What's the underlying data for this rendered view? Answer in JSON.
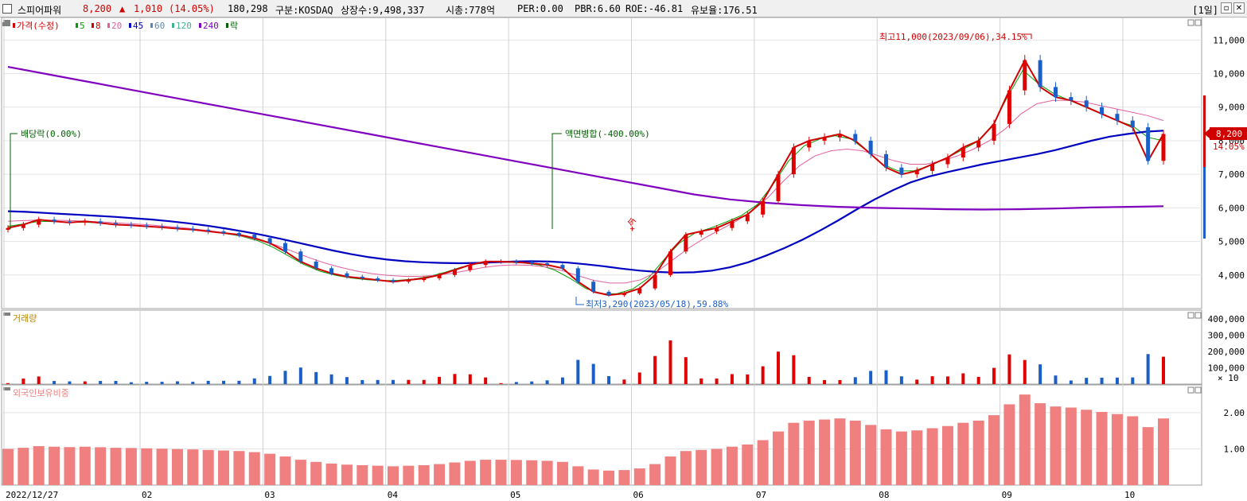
{
  "header": {
    "name": "스피어파워",
    "price": "8,200",
    "arrow": "▲",
    "change": "1,010",
    "change_pct": "(14.05%)",
    "volume": "180,298",
    "market": "구분:KOSDAQ",
    "shares": "상장수:9,498,337",
    "mcap": "시총:778억",
    "per": "PER:0.00",
    "pbr": "PBR:6.60",
    "roe": "ROE:-46.81",
    "float": "유보율:176.51",
    "period": "[1일]"
  },
  "legend": [
    {
      "text": "가격(수정)",
      "color": "#d00000"
    },
    {
      "text": "5",
      "color": "#00a000"
    },
    {
      "text": "8",
      "color": "#d00000"
    },
    {
      "text": "20",
      "color": "#e060a0"
    },
    {
      "text": "45",
      "color": "#0000c0"
    },
    {
      "text": "60",
      "color": "#5a8ab0"
    },
    {
      "text": "120",
      "color": "#40b090"
    },
    {
      "text": "240",
      "color": "#8000c0"
    },
    {
      "text": "락",
      "color": "#006000"
    }
  ],
  "annotations": {
    "high": "최고11,000(2023/09/06),34.15%",
    "low": "최저3,290(2023/05/18),59.88%",
    "dividend": "배당락(0.00%)",
    "split": "액면병합(-400.00%)",
    "unit_label": "+今",
    "last_price": "8,200",
    "last_pct": "14.05%"
  },
  "volume_panel": {
    "title": "거래량",
    "multiplier": "× 10"
  },
  "foreign_panel": {
    "title": "외국인보유비중"
  },
  "colors": {
    "up": "#e00000",
    "down": "#1a5fc8",
    "bg": "#ffffff",
    "grid": "#e4e4e4",
    "foreign": "#f08080"
  },
  "chart_data": [
    {
      "type": "candlestick",
      "title": "가격(수정)",
      "x_tick_labels": [
        "2022/12/27",
        "02",
        "03",
        "04",
        "05",
        "06",
        "07",
        "08",
        "09",
        "10"
      ],
      "y_tick_labels": [
        "4,000",
        "5,000",
        "6,000",
        "7,000",
        "8,000",
        "9,000",
        "10,000",
        "11,000"
      ],
      "ylim": [
        3000,
        11600
      ],
      "close_series": [
        5400,
        5500,
        5650,
        5600,
        5560,
        5600,
        5550,
        5500,
        5480,
        5450,
        5420,
        5380,
        5350,
        5300,
        5250,
        5200,
        5100,
        4950,
        4700,
        4400,
        4200,
        4050,
        3950,
        3900,
        3850,
        3800,
        3850,
        3900,
        4000,
        4150,
        4300,
        4400,
        4400,
        4380,
        4350,
        4300,
        4200,
        3800,
        3500,
        3400,
        3450,
        3600,
        4000,
        4700,
        5200,
        5300,
        5400,
        5600,
        5800,
        6200,
        7000,
        7800,
        8000,
        8100,
        8200,
        8000,
        7600,
        7200,
        7000,
        7100,
        7300,
        7500,
        7800,
        8000,
        8500,
        9500,
        10400,
        9600,
        9300,
        9200,
        9000,
        8800,
        8600,
        8400,
        7400,
        8200
      ],
      "moving_averages": [
        {
          "name": "5",
          "values": [
            5450,
            5520,
            5600,
            5590,
            5570,
            5570,
            5550,
            5510,
            5480,
            5450,
            5420,
            5380,
            5340,
            5290,
            5230,
            5150,
            5020,
            4820,
            4560,
            4300,
            4110,
            3990,
            3910,
            3860,
            3830,
            3840,
            3880,
            3960,
            4080,
            4230,
            4330,
            4380,
            4380,
            4360,
            4300,
            4150,
            3900,
            3600,
            3440,
            3440,
            3580,
            3900,
            4450,
            4950,
            5250,
            5400,
            5580,
            5780,
            6100,
            6700,
            7400,
            7850,
            8050,
            8150,
            8050,
            7700,
            7300,
            7100,
            7100,
            7250,
            7450,
            7700,
            7950,
            8400,
            9300,
            10100,
            9700,
            9400,
            9200,
            9000,
            8800,
            8600,
            8450,
            8100,
            8000
          ]
        },
        {
          "name": "20",
          "values": [
            5600,
            5620,
            5640,
            5630,
            5620,
            5600,
            5580,
            5550,
            5520,
            5490,
            5450,
            5410,
            5360,
            5300,
            5230,
            5140,
            5020,
            4880,
            4700,
            4520,
            4360,
            4230,
            4120,
            4040,
            3990,
            3960,
            3960,
            3990,
            4050,
            4130,
            4220,
            4280,
            4300,
            4290,
            4240,
            4130,
            3980,
            3840,
            3760,
            3760,
            3860,
            4100,
            4450,
            4800,
            5100,
            5350,
            5600,
            5900,
            6300,
            6800,
            7250,
            7550,
            7700,
            7750,
            7700,
            7550,
            7400,
            7300,
            7300,
            7400,
            7550,
            7750,
            8000,
            8350,
            8800,
            9100,
            9200,
            9200,
            9150,
            9050,
            8950,
            8850,
            8750,
            8600
          ]
        },
        {
          "name": "45",
          "values": [
            5900,
            5880,
            5850,
            5820,
            5790,
            5760,
            5730,
            5690,
            5650,
            5600,
            5540,
            5470,
            5390,
            5300,
            5200,
            5090,
            4970,
            4850,
            4730,
            4620,
            4530,
            4460,
            4410,
            4380,
            4360,
            4350,
            4360,
            4380,
            4400,
            4410,
            4400,
            4370,
            4320,
            4260,
            4190,
            4130,
            4090,
            4070,
            4080,
            4130,
            4230,
            4380,
            4580,
            4800,
            5050,
            5330,
            5630,
            5950,
            6250,
            6520,
            6760,
            6930,
            7060,
            7180,
            7300,
            7400,
            7500,
            7600,
            7720,
            7860,
            8000,
            8120,
            8200,
            8270,
            8300
          ]
        },
        {
          "name": "240",
          "values": [
            10200,
            10000,
            9800,
            9600,
            9400,
            9200,
            9000,
            8800,
            8600,
            8400,
            8200,
            8000,
            7800,
            7600,
            7400,
            7200,
            7000,
            6800,
            6600,
            6400,
            6250,
            6150,
            6080,
            6030,
            6000,
            5980,
            5960,
            5950,
            5960,
            5980,
            6010,
            6030,
            6050
          ]
        }
      ]
    },
    {
      "type": "bar",
      "title": "거래량",
      "y_tick_labels": [
        "100,000",
        "200,000",
        "300,000",
        "400,000"
      ],
      "ylim": [
        0,
        440000
      ]
    },
    {
      "type": "bar",
      "title": "외국인보유비중",
      "y_tick_labels": [
        "1.00",
        "2.00"
      ],
      "ylim": [
        0,
        2.7
      ]
    }
  ]
}
